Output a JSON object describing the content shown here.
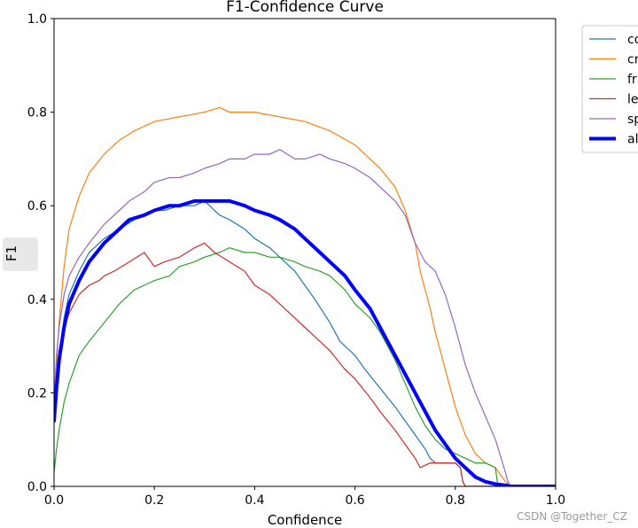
{
  "chart_data": {
    "type": "line",
    "title": "F1-Confidence Curve",
    "xlabel": "Confidence",
    "ylabel": "F1",
    "xlim": [
      0,
      1
    ],
    "ylim": [
      0,
      1
    ],
    "xticks": [
      "0.0",
      "0.2",
      "0.4",
      "0.6",
      "0.8",
      "1.0"
    ],
    "yticks": [
      "0.0",
      "0.2",
      "0.4",
      "0.6",
      "0.8",
      "1.0"
    ],
    "legend_position": "outside-top-right (clipped)",
    "series": [
      {
        "name": "co",
        "color": "#1f77b4",
        "line_width": 1.2,
        "x": [
          0.0,
          0.005,
          0.01,
          0.02,
          0.03,
          0.05,
          0.07,
          0.1,
          0.13,
          0.16,
          0.18,
          0.2,
          0.22,
          0.25,
          0.28,
          0.3,
          0.31,
          0.33,
          0.35,
          0.38,
          0.4,
          0.43,
          0.45,
          0.48,
          0.5,
          0.52,
          0.55,
          0.57,
          0.6,
          0.62,
          0.65,
          0.68,
          0.7,
          0.72,
          0.74,
          0.75,
          0.76,
          0.78,
          0.8,
          0.81,
          0.815,
          0.82,
          1.0
        ],
        "y": [
          0.15,
          0.22,
          0.28,
          0.36,
          0.41,
          0.46,
          0.5,
          0.53,
          0.55,
          0.57,
          0.58,
          0.59,
          0.59,
          0.6,
          0.6,
          0.61,
          0.6,
          0.58,
          0.57,
          0.55,
          0.53,
          0.51,
          0.49,
          0.46,
          0.43,
          0.4,
          0.35,
          0.31,
          0.28,
          0.25,
          0.21,
          0.17,
          0.14,
          0.11,
          0.08,
          0.06,
          0.05,
          0.05,
          0.05,
          0.04,
          0.01,
          0.0,
          0.0
        ]
      },
      {
        "name": "cr",
        "color": "#ff7f0e",
        "line_width": 1.2,
        "x": [
          0.0,
          0.005,
          0.01,
          0.02,
          0.03,
          0.05,
          0.07,
          0.1,
          0.13,
          0.16,
          0.2,
          0.25,
          0.3,
          0.33,
          0.35,
          0.4,
          0.45,
          0.5,
          0.55,
          0.6,
          0.63,
          0.65,
          0.68,
          0.7,
          0.72,
          0.73,
          0.75,
          0.76,
          0.78,
          0.8,
          0.82,
          0.84,
          0.86,
          0.88,
          0.9,
          0.91,
          1.0
        ],
        "y": [
          0.15,
          0.26,
          0.35,
          0.47,
          0.55,
          0.62,
          0.67,
          0.71,
          0.74,
          0.76,
          0.78,
          0.79,
          0.8,
          0.81,
          0.8,
          0.8,
          0.79,
          0.78,
          0.76,
          0.73,
          0.7,
          0.68,
          0.64,
          0.59,
          0.52,
          0.46,
          0.38,
          0.33,
          0.25,
          0.17,
          0.11,
          0.07,
          0.05,
          0.04,
          0.01,
          0.0,
          0.0
        ]
      },
      {
        "name": "fr",
        "color": "#2ca02c",
        "line_width": 1.2,
        "x": [
          0.0,
          0.005,
          0.01,
          0.02,
          0.03,
          0.05,
          0.07,
          0.1,
          0.13,
          0.16,
          0.18,
          0.2,
          0.23,
          0.25,
          0.28,
          0.3,
          0.33,
          0.35,
          0.38,
          0.4,
          0.43,
          0.45,
          0.48,
          0.5,
          0.53,
          0.55,
          0.58,
          0.6,
          0.63,
          0.65,
          0.68,
          0.7,
          0.72,
          0.74,
          0.76,
          0.78,
          0.8,
          0.82,
          0.84,
          0.86,
          0.88,
          0.885,
          1.0
        ],
        "y": [
          0.03,
          0.08,
          0.12,
          0.18,
          0.22,
          0.28,
          0.31,
          0.35,
          0.39,
          0.42,
          0.43,
          0.44,
          0.45,
          0.47,
          0.48,
          0.49,
          0.5,
          0.51,
          0.5,
          0.5,
          0.49,
          0.49,
          0.48,
          0.47,
          0.46,
          0.45,
          0.42,
          0.39,
          0.36,
          0.33,
          0.27,
          0.22,
          0.17,
          0.13,
          0.1,
          0.08,
          0.07,
          0.06,
          0.05,
          0.05,
          0.04,
          0.0,
          0.0
        ]
      },
      {
        "name": "le",
        "color": "#d62728",
        "line_width": 1.2,
        "x": [
          0.0,
          0.005,
          0.01,
          0.02,
          0.03,
          0.05,
          0.07,
          0.09,
          0.1,
          0.12,
          0.15,
          0.18,
          0.2,
          0.22,
          0.25,
          0.28,
          0.3,
          0.32,
          0.35,
          0.38,
          0.4,
          0.43,
          0.45,
          0.48,
          0.5,
          0.53,
          0.55,
          0.58,
          0.6,
          0.63,
          0.65,
          0.68,
          0.7,
          0.72,
          0.73,
          0.75,
          0.78,
          0.8,
          0.81,
          0.815,
          0.82,
          1.0
        ],
        "y": [
          0.16,
          0.24,
          0.29,
          0.34,
          0.37,
          0.41,
          0.43,
          0.44,
          0.45,
          0.46,
          0.48,
          0.5,
          0.47,
          0.48,
          0.49,
          0.51,
          0.52,
          0.5,
          0.48,
          0.46,
          0.43,
          0.41,
          0.39,
          0.36,
          0.34,
          0.31,
          0.29,
          0.25,
          0.23,
          0.19,
          0.16,
          0.12,
          0.09,
          0.06,
          0.04,
          0.05,
          0.05,
          0.05,
          0.04,
          0.01,
          0.0,
          0.0
        ]
      },
      {
        "name": "sp",
        "color": "#9467bd",
        "line_width": 1.2,
        "x": [
          0.0,
          0.005,
          0.01,
          0.02,
          0.03,
          0.05,
          0.07,
          0.1,
          0.13,
          0.15,
          0.18,
          0.2,
          0.23,
          0.25,
          0.28,
          0.3,
          0.33,
          0.35,
          0.38,
          0.4,
          0.43,
          0.45,
          0.48,
          0.5,
          0.53,
          0.55,
          0.58,
          0.6,
          0.63,
          0.65,
          0.68,
          0.7,
          0.72,
          0.74,
          0.76,
          0.78,
          0.8,
          0.82,
          0.84,
          0.86,
          0.88,
          0.9,
          0.905,
          0.91,
          1.0
        ],
        "y": [
          0.18,
          0.28,
          0.34,
          0.41,
          0.45,
          0.49,
          0.52,
          0.56,
          0.59,
          0.61,
          0.63,
          0.65,
          0.66,
          0.66,
          0.67,
          0.68,
          0.69,
          0.7,
          0.7,
          0.71,
          0.71,
          0.72,
          0.7,
          0.7,
          0.71,
          0.7,
          0.69,
          0.68,
          0.66,
          0.64,
          0.61,
          0.58,
          0.52,
          0.48,
          0.46,
          0.41,
          0.34,
          0.26,
          0.2,
          0.15,
          0.1,
          0.03,
          0.01,
          0.0,
          0.0
        ]
      },
      {
        "name": "al",
        "color": "#0000ff",
        "line_width": 4,
        "x": [
          0.0,
          0.005,
          0.01,
          0.02,
          0.03,
          0.05,
          0.07,
          0.1,
          0.13,
          0.15,
          0.18,
          0.2,
          0.23,
          0.25,
          0.28,
          0.3,
          0.33,
          0.35,
          0.38,
          0.4,
          0.43,
          0.45,
          0.48,
          0.5,
          0.53,
          0.55,
          0.58,
          0.6,
          0.63,
          0.65,
          0.68,
          0.7,
          0.72,
          0.74,
          0.76,
          0.78,
          0.8,
          0.82,
          0.84,
          0.86,
          0.88,
          0.9,
          0.91,
          0.92,
          1.0
        ],
        "y": [
          0.14,
          0.21,
          0.27,
          0.34,
          0.39,
          0.44,
          0.48,
          0.52,
          0.55,
          0.57,
          0.58,
          0.59,
          0.6,
          0.6,
          0.61,
          0.61,
          0.61,
          0.61,
          0.6,
          0.59,
          0.58,
          0.57,
          0.55,
          0.53,
          0.5,
          0.48,
          0.45,
          0.42,
          0.38,
          0.34,
          0.28,
          0.24,
          0.2,
          0.16,
          0.12,
          0.09,
          0.06,
          0.04,
          0.02,
          0.01,
          0.005,
          0.002,
          0.0,
          0.0,
          0.0
        ]
      }
    ]
  },
  "watermark": "CSDN @Together_CZ"
}
